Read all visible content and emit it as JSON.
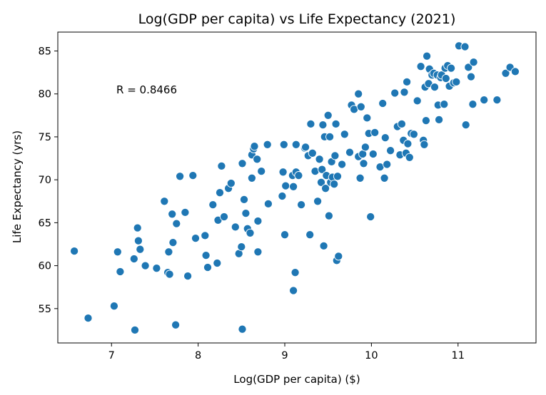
{
  "chart_data": {
    "type": "scatter",
    "title": "Log(GDP per capita) vs Life Expectancy (2021)",
    "xlabel": "Log(GDP per capita) ($)",
    "ylabel": "Life Expectancy (yrs)",
    "annotation": "R = 0.8466",
    "grid": false,
    "xlim": [
      6.38,
      11.9
    ],
    "ylim": [
      51.0,
      87.2
    ],
    "xticks": [
      7,
      8,
      9,
      10,
      11
    ],
    "yticks": [
      55,
      60,
      65,
      70,
      75,
      80,
      85
    ],
    "color": "#1f77b4",
    "points": [
      [
        6.57,
        61.7
      ],
      [
        6.73,
        53.9
      ],
      [
        7.03,
        55.3
      ],
      [
        7.07,
        61.6
      ],
      [
        7.1,
        59.3
      ],
      [
        7.26,
        60.8
      ],
      [
        7.27,
        52.5
      ],
      [
        7.3,
        64.4
      ],
      [
        7.31,
        62.9
      ],
      [
        7.33,
        61.9
      ],
      [
        7.39,
        60.0
      ],
      [
        7.52,
        59.7
      ],
      [
        7.61,
        67.5
      ],
      [
        7.65,
        59.2
      ],
      [
        7.66,
        61.6
      ],
      [
        7.67,
        59.0
      ],
      [
        7.7,
        66.0
      ],
      [
        7.71,
        62.7
      ],
      [
        7.74,
        53.1
      ],
      [
        7.75,
        64.9
      ],
      [
        7.79,
        70.4
      ],
      [
        7.85,
        66.2
      ],
      [
        7.88,
        58.8
      ],
      [
        7.94,
        70.5
      ],
      [
        7.97,
        63.2
      ],
      [
        8.08,
        63.5
      ],
      [
        8.09,
        61.2
      ],
      [
        8.11,
        59.8
      ],
      [
        8.17,
        67.1
      ],
      [
        8.22,
        60.3
      ],
      [
        8.23,
        65.3
      ],
      [
        8.25,
        68.5
      ],
      [
        8.27,
        71.6
      ],
      [
        8.3,
        65.7
      ],
      [
        8.35,
        69.0
      ],
      [
        8.38,
        69.6
      ],
      [
        8.43,
        64.5
      ],
      [
        8.47,
        61.4
      ],
      [
        8.5,
        62.2
      ],
      [
        8.51,
        52.6
      ],
      [
        8.51,
        71.9
      ],
      [
        8.53,
        67.7
      ],
      [
        8.55,
        66.1
      ],
      [
        8.57,
        64.3
      ],
      [
        8.6,
        63.8
      ],
      [
        8.62,
        72.9
      ],
      [
        8.62,
        70.2
      ],
      [
        8.64,
        73.6
      ],
      [
        8.65,
        73.9
      ],
      [
        8.68,
        72.4
      ],
      [
        8.69,
        65.2
      ],
      [
        8.69,
        61.6
      ],
      [
        8.73,
        71.0
      ],
      [
        8.8,
        74.1
      ],
      [
        8.81,
        67.2
      ],
      [
        8.97,
        68.1
      ],
      [
        8.98,
        70.9
      ],
      [
        8.99,
        74.1
      ],
      [
        9.0,
        63.6
      ],
      [
        9.01,
        69.3
      ],
      [
        9.09,
        70.5
      ],
      [
        9.1,
        57.1
      ],
      [
        9.1,
        69.2
      ],
      [
        9.12,
        59.2
      ],
      [
        9.13,
        74.1
      ],
      [
        9.13,
        70.9
      ],
      [
        9.16,
        70.5
      ],
      [
        9.19,
        67.1
      ],
      [
        9.23,
        73.7
      ],
      [
        9.24,
        73.8
      ],
      [
        9.27,
        72.8
      ],
      [
        9.29,
        63.6
      ],
      [
        9.3,
        76.5
      ],
      [
        9.32,
        73.1
      ],
      [
        9.35,
        71.0
      ],
      [
        9.38,
        67.5
      ],
      [
        9.4,
        72.4
      ],
      [
        9.42,
        69.7
      ],
      [
        9.43,
        71.2
      ],
      [
        9.44,
        76.4
      ],
      [
        9.45,
        62.3
      ],
      [
        9.46,
        75.0
      ],
      [
        9.47,
        69.0
      ],
      [
        9.48,
        70.5
      ],
      [
        9.5,
        77.5
      ],
      [
        9.51,
        65.8
      ],
      [
        9.52,
        75.0
      ],
      [
        9.53,
        69.7
      ],
      [
        9.54,
        72.1
      ],
      [
        9.55,
        70.3
      ],
      [
        9.57,
        69.5
      ],
      [
        9.58,
        72.8
      ],
      [
        9.59,
        76.5
      ],
      [
        9.6,
        60.6
      ],
      [
        9.61,
        70.4
      ],
      [
        9.62,
        61.1
      ],
      [
        9.66,
        71.8
      ],
      [
        9.69,
        75.3
      ],
      [
        9.75,
        73.2
      ],
      [
        9.77,
        78.7
      ],
      [
        9.8,
        78.2
      ],
      [
        9.85,
        72.7
      ],
      [
        9.85,
        80.0
      ],
      [
        9.87,
        70.2
      ],
      [
        9.88,
        78.5
      ],
      [
        9.9,
        73.0
      ],
      [
        9.91,
        71.9
      ],
      [
        9.93,
        73.8
      ],
      [
        9.95,
        77.2
      ],
      [
        9.97,
        75.4
      ],
      [
        9.99,
        65.7
      ],
      [
        10.02,
        73.0
      ],
      [
        10.04,
        75.5
      ],
      [
        10.1,
        71.5
      ],
      [
        10.13,
        78.9
      ],
      [
        10.15,
        70.2
      ],
      [
        10.16,
        74.9
      ],
      [
        10.18,
        71.8
      ],
      [
        10.22,
        73.4
      ],
      [
        10.27,
        80.1
      ],
      [
        10.3,
        76.2
      ],
      [
        10.33,
        72.9
      ],
      [
        10.35,
        76.5
      ],
      [
        10.37,
        74.6
      ],
      [
        10.38,
        80.2
      ],
      [
        10.4,
        73.1
      ],
      [
        10.41,
        81.4
      ],
      [
        10.42,
        74.2
      ],
      [
        10.44,
        72.6
      ],
      [
        10.46,
        75.4
      ],
      [
        10.49,
        75.3
      ],
      [
        10.53,
        79.2
      ],
      [
        10.57,
        83.2
      ],
      [
        10.6,
        74.6
      ],
      [
        10.61,
        74.1
      ],
      [
        10.62,
        80.8
      ],
      [
        10.63,
        76.9
      ],
      [
        10.64,
        84.4
      ],
      [
        10.66,
        81.2
      ],
      [
        10.67,
        82.9
      ],
      [
        10.7,
        82.2
      ],
      [
        10.72,
        82.4
      ],
      [
        10.73,
        80.8
      ],
      [
        10.76,
        82.2
      ],
      [
        10.77,
        78.7
      ],
      [
        10.78,
        77.0
      ],
      [
        10.8,
        81.9
      ],
      [
        10.81,
        82.2
      ],
      [
        10.84,
        78.8
      ],
      [
        10.85,
        83.0
      ],
      [
        10.86,
        81.8
      ],
      [
        10.88,
        83.3
      ],
      [
        10.9,
        80.9
      ],
      [
        10.92,
        83.0
      ],
      [
        10.95,
        81.3
      ],
      [
        10.98,
        81.4
      ],
      [
        11.01,
        85.6
      ],
      [
        11.08,
        85.5
      ],
      [
        11.09,
        76.4
      ],
      [
        11.12,
        83.1
      ],
      [
        11.15,
        82.0
      ],
      [
        11.17,
        78.8
      ],
      [
        11.18,
        83.7
      ],
      [
        11.3,
        79.3
      ],
      [
        11.45,
        79.3
      ],
      [
        11.55,
        82.4
      ],
      [
        11.6,
        83.1
      ],
      [
        11.66,
        82.6
      ]
    ]
  }
}
